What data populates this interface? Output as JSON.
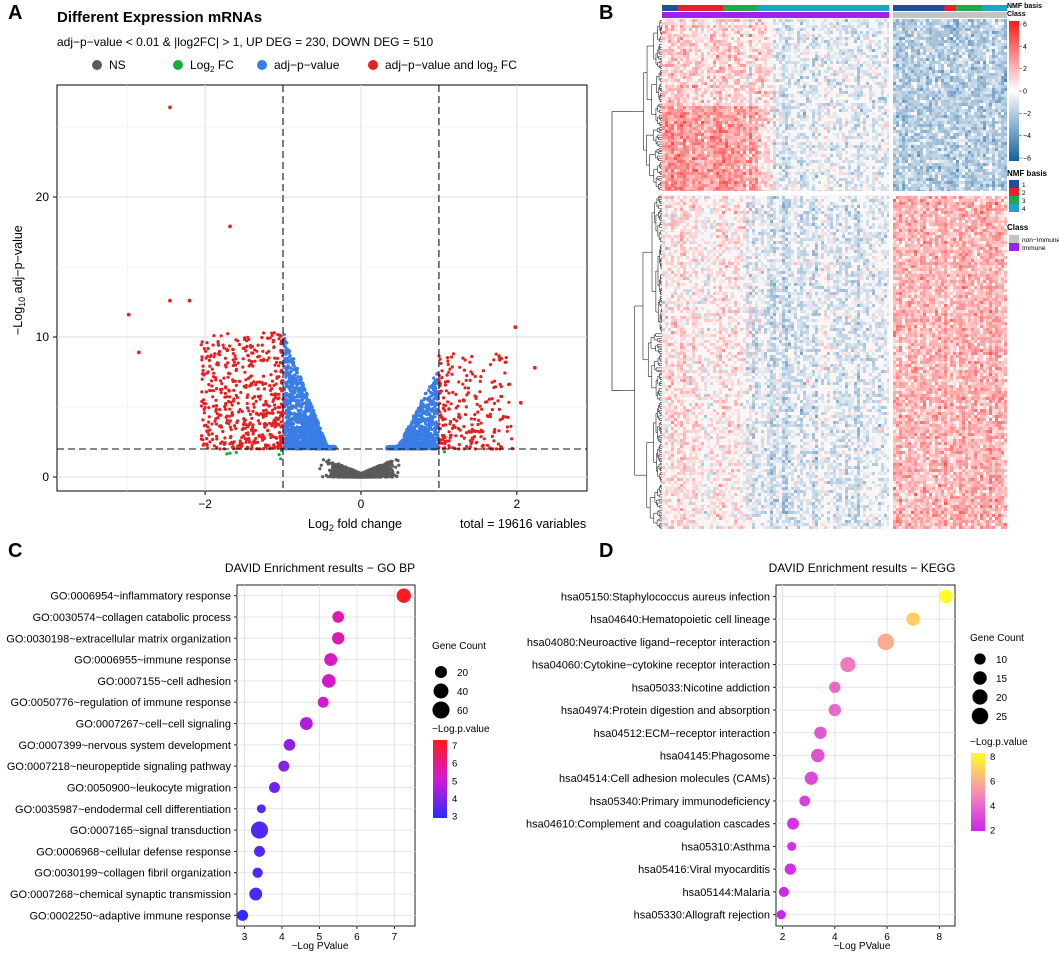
{
  "figure": {
    "panel_letters": [
      "A",
      "B",
      "C",
      "D"
    ]
  },
  "chart_data": [
    {
      "id": "A",
      "type": "scatter",
      "title": "Different Expression mRNAs",
      "subtitle": "adj−p−value < 0.01 & |log2FC| > 1, UP DEG = 230, DOWN DEG = 510",
      "xlabel_main": "Log",
      "xlabel_sub": "2",
      "xlabel_tail": " fold change",
      "ylabel_pre": "−Log",
      "ylabel_sub": "10",
      "ylabel_tail": " adj−p−value",
      "caption": "total = 19616 variables",
      "xlim": [
        -3.9,
        2.9
      ],
      "ylim": [
        -1,
        28
      ],
      "xticks": [
        -2,
        0,
        2
      ],
      "xtick_labels": [
        "−2",
        "0",
        "2"
      ],
      "yticks": [
        0,
        10,
        20
      ],
      "ytick_labels": [
        "0",
        "10",
        "20"
      ],
      "fc_cutoffs": [
        -1,
        1
      ],
      "p_cutoff": 2,
      "legend": [
        {
          "label": "NS",
          "color": "#5a5a5a"
        },
        {
          "label": "Log",
          "sub": "2",
          "tail": " FC",
          "color": "#1aab3a"
        },
        {
          "label": "adj−p−value",
          "color": "#3a7de6"
        },
        {
          "label": "adj−p−value and log",
          "sub": "2",
          "tail": " FC",
          "color": "#e62020"
        }
      ],
      "outliers": [
        {
          "x": -2.45,
          "y": 26.4
        },
        {
          "x": -1.68,
          "y": 17.9
        },
        {
          "x": -2.98,
          "y": 11.6
        },
        {
          "x": -2.45,
          "y": 12.6
        },
        {
          "x": -2.2,
          "y": 12.6
        },
        {
          "x": 1.98,
          "y": 10.7
        },
        {
          "x": 2.23,
          "y": 7.8
        },
        {
          "x": 2.05,
          "y": 5.3
        },
        {
          "x": -2.85,
          "y": 8.9
        }
      ]
    },
    {
      "id": "B",
      "type": "heatmap",
      "annotation_labels": [
        "NMF basis",
        "Class"
      ],
      "colorbar_ticks": [
        "6",
        "4",
        "2",
        "0",
        "−2",
        "−4",
        "−6"
      ],
      "nmf_legend_title": "NMF basis",
      "nmf_legend": [
        {
          "label": "1",
          "color": "#1f4e9c"
        },
        {
          "label": "2",
          "color": "#e8202a"
        },
        {
          "label": "3",
          "color": "#22a84a"
        },
        {
          "label": "4",
          "color": "#1da5c8"
        }
      ],
      "class_legend_title": "Class",
      "class_legend": [
        {
          "label": "non−Immune",
          "color": "#c4c4c4"
        },
        {
          "label": "Immune",
          "color": "#a020f0"
        }
      ]
    },
    {
      "id": "C",
      "type": "scatter",
      "title": "DAVID Enrichment results − GO BP",
      "xlabel": "−Log PValue",
      "xticks": [
        3,
        4,
        5,
        6,
        7
      ],
      "xlim": [
        2.8,
        7.55
      ],
      "categories": [
        "GO:0006954~inflammatory response",
        "GO:0030574~collagen catabolic process",
        "GO:0030198~extracellular matrix organization",
        "GO:0006955~immune response",
        "GO:0007155~cell adhesion",
        "GO:0050776~regulation of immune response",
        "GO:0007267~cell−cell signaling",
        "GO:0007399~nervous system development",
        "GO:0007218~neuropeptide signaling pathway",
        "GO:0050900~leukocyte migration",
        "GO:0035987~endodermal cell differentiation",
        "GO:0007165~signal transduction",
        "GO:0006968~cellular defense response",
        "GO:0030199~collagen fibril organization",
        "GO:0007268~chemical synaptic transmission",
        "GO:0002250~adaptive immune response"
      ],
      "x": [
        7.25,
        5.5,
        5.5,
        5.3,
        5.25,
        5.1,
        4.65,
        4.2,
        4.05,
        3.8,
        3.45,
        3.4,
        3.4,
        3.35,
        3.3,
        2.95
      ],
      "gene_count": [
        35,
        18,
        22,
        25,
        30,
        15,
        25,
        18,
        15,
        15,
        8,
        60,
        15,
        12,
        25,
        15
      ],
      "size_legend_title": "Gene Count",
      "size_legend": [
        20,
        40,
        60
      ],
      "size_range": [
        5,
        65
      ],
      "color_legend_title": "−Log.p.value",
      "color_ticks": [
        3,
        4,
        5,
        6,
        7
      ],
      "color_range": [
        2.9,
        7.3
      ],
      "color_low": "#2b2bff",
      "color_mid": "#d41ad4",
      "color_high": "#ff1a1a"
    },
    {
      "id": "D",
      "type": "scatter",
      "title": "DAVID Enrichment results − KEGG",
      "xlabel": "−Log PValue",
      "xticks": [
        2,
        4,
        6,
        8
      ],
      "xlim": [
        1.75,
        8.6
      ],
      "categories": [
        "hsa05150:Staphylococcus aureus infection",
        "hsa04640:Hematopoietic cell lineage",
        "hsa04080:Neuroactive ligand−receptor interaction",
        "hsa04060:Cytokine−cytokine receptor interaction",
        "hsa05033:Nicotine addiction",
        "hsa04974:Protein digestion and absorption",
        "hsa04512:ECM−receptor interaction",
        "hsa04145:Phagosome",
        "hsa04514:Cell adhesion molecules (CAMs)",
        "hsa05340:Primary immunodeficiency",
        "hsa04610:Complement and coagulation cascades",
        "hsa05310:Asthma",
        "hsa05416:Viral myocarditis",
        "hsa05144:Malaria",
        "hsa05330:Allograft rejection"
      ],
      "x": [
        8.25,
        7.0,
        5.95,
        4.5,
        4.0,
        4.0,
        3.45,
        3.35,
        3.1,
        2.85,
        2.4,
        2.35,
        2.3,
        2.05,
        1.95
      ],
      "gene_count": [
        15,
        15,
        25,
        20,
        10,
        12,
        12,
        15,
        14,
        9,
        11,
        7,
        10,
        8,
        7
      ],
      "size_legend_title": "Gene Count",
      "size_legend": [
        10,
        15,
        20,
        25
      ],
      "size_range": [
        6,
        27
      ],
      "color_legend_title": "−Log.p.value",
      "color_ticks": [
        2,
        4,
        6,
        8
      ],
      "color_range": [
        1.9,
        8.3
      ],
      "color_low": "#cc22ee",
      "color_mid": "#f78fb3",
      "color_high": "#ffff22"
    }
  ]
}
